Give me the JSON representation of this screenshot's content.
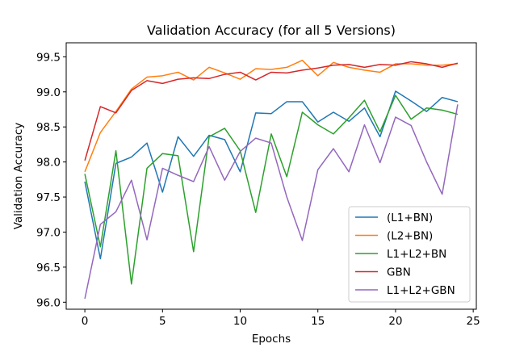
{
  "chart_data": {
    "type": "line",
    "title": "Validation Accuracy (for all 5 Versions)",
    "xlabel": "Epochs",
    "ylabel": "Validation Accuracy",
    "xlim": [
      -1.2,
      25.2
    ],
    "ylim": [
      95.9,
      99.7
    ],
    "xticks": [
      0,
      5,
      10,
      15,
      20,
      25
    ],
    "xtick_labels": [
      "0",
      "5",
      "10",
      "15",
      "20",
      "25"
    ],
    "yticks": [
      96.0,
      96.5,
      97.0,
      97.5,
      98.0,
      98.5,
      99.0,
      99.5
    ],
    "ytick_labels": [
      "96.0",
      "96.5",
      "97.0",
      "97.5",
      "98.0",
      "98.5",
      "99.0",
      "99.5"
    ],
    "grid": false,
    "legend_position": "lower-right",
    "x": [
      0,
      1,
      2,
      3,
      4,
      5,
      6,
      7,
      8,
      9,
      10,
      11,
      12,
      13,
      14,
      15,
      16,
      17,
      18,
      19,
      20,
      21,
      22,
      23,
      24
    ],
    "series": [
      {
        "name": "(L1+BN)",
        "color": "#1f77b4",
        "values": [
          97.72,
          96.62,
          97.98,
          98.07,
          98.27,
          97.57,
          98.36,
          98.08,
          98.38,
          98.32,
          97.86,
          98.7,
          98.69,
          98.86,
          98.86,
          98.57,
          98.71,
          98.58,
          98.77,
          98.36,
          99.01,
          98.87,
          98.72,
          98.92,
          98.86
        ]
      },
      {
        "name": "(L2+BN)",
        "color": "#ff7f0e",
        "values": [
          97.86,
          98.42,
          98.72,
          99.04,
          99.21,
          99.23,
          99.28,
          99.17,
          99.35,
          99.27,
          99.18,
          99.33,
          99.32,
          99.35,
          99.45,
          99.23,
          99.42,
          99.35,
          99.31,
          99.28,
          99.4,
          99.4,
          99.38,
          99.38,
          99.4
        ]
      },
      {
        "name": "L1+L2+BN",
        "color": "#2ca02c",
        "values": [
          97.83,
          96.79,
          98.16,
          96.26,
          97.91,
          98.12,
          98.09,
          96.72,
          98.36,
          98.48,
          98.16,
          97.28,
          98.4,
          97.79,
          98.71,
          98.53,
          98.4,
          98.63,
          98.88,
          98.43,
          98.95,
          98.61,
          98.77,
          98.74,
          98.68
        ]
      },
      {
        "name": "GBN",
        "color": "#d62728",
        "values": [
          98.02,
          98.79,
          98.7,
          99.02,
          99.16,
          99.12,
          99.18,
          99.2,
          99.19,
          99.25,
          99.28,
          99.17,
          99.28,
          99.27,
          99.31,
          99.34,
          99.38,
          99.39,
          99.35,
          99.39,
          99.38,
          99.43,
          99.4,
          99.35,
          99.41
        ]
      },
      {
        "name": "L1+L2+GBN",
        "color": "#9467bd",
        "values": [
          96.05,
          97.11,
          97.29,
          97.74,
          96.89,
          97.91,
          97.81,
          97.72,
          98.22,
          97.74,
          98.15,
          98.34,
          98.27,
          97.5,
          96.88,
          97.89,
          98.19,
          97.86,
          98.53,
          97.99,
          98.64,
          98.52,
          98.0,
          97.54,
          98.82
        ]
      }
    ]
  }
}
